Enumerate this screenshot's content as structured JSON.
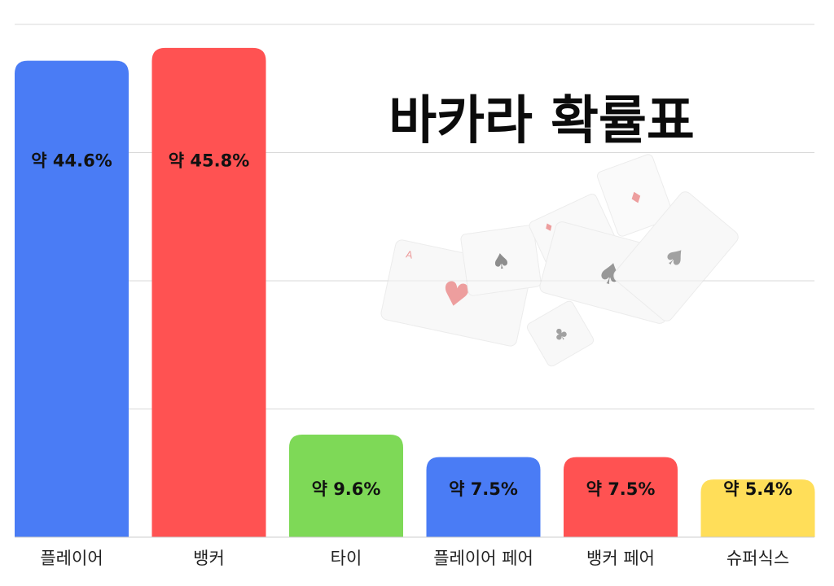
{
  "chart_data": {
    "type": "bar",
    "title": "바카라 확률표",
    "categories": [
      "플레이어",
      "뱅커",
      "타이",
      "플레이어 페어",
      "뱅커 페어",
      "슈퍼식스"
    ],
    "values": [
      44.6,
      45.8,
      9.6,
      7.5,
      7.5,
      5.4
    ],
    "value_labels": [
      "약 44.6%",
      "약 45.8%",
      "약 9.6%",
      "약 7.5%",
      "약 7.5%",
      "약 5.4%"
    ],
    "bar_colors": [
      "#4a7cf5",
      "#ff5252",
      "#7ed957",
      "#4a7cf5",
      "#ff5252",
      "#ffde59"
    ],
    "ylim": [
      0,
      48
    ],
    "grid": true,
    "gridline_color": "#d9d9d9"
  },
  "decoration": {
    "image": "playing-cards-illustration"
  }
}
